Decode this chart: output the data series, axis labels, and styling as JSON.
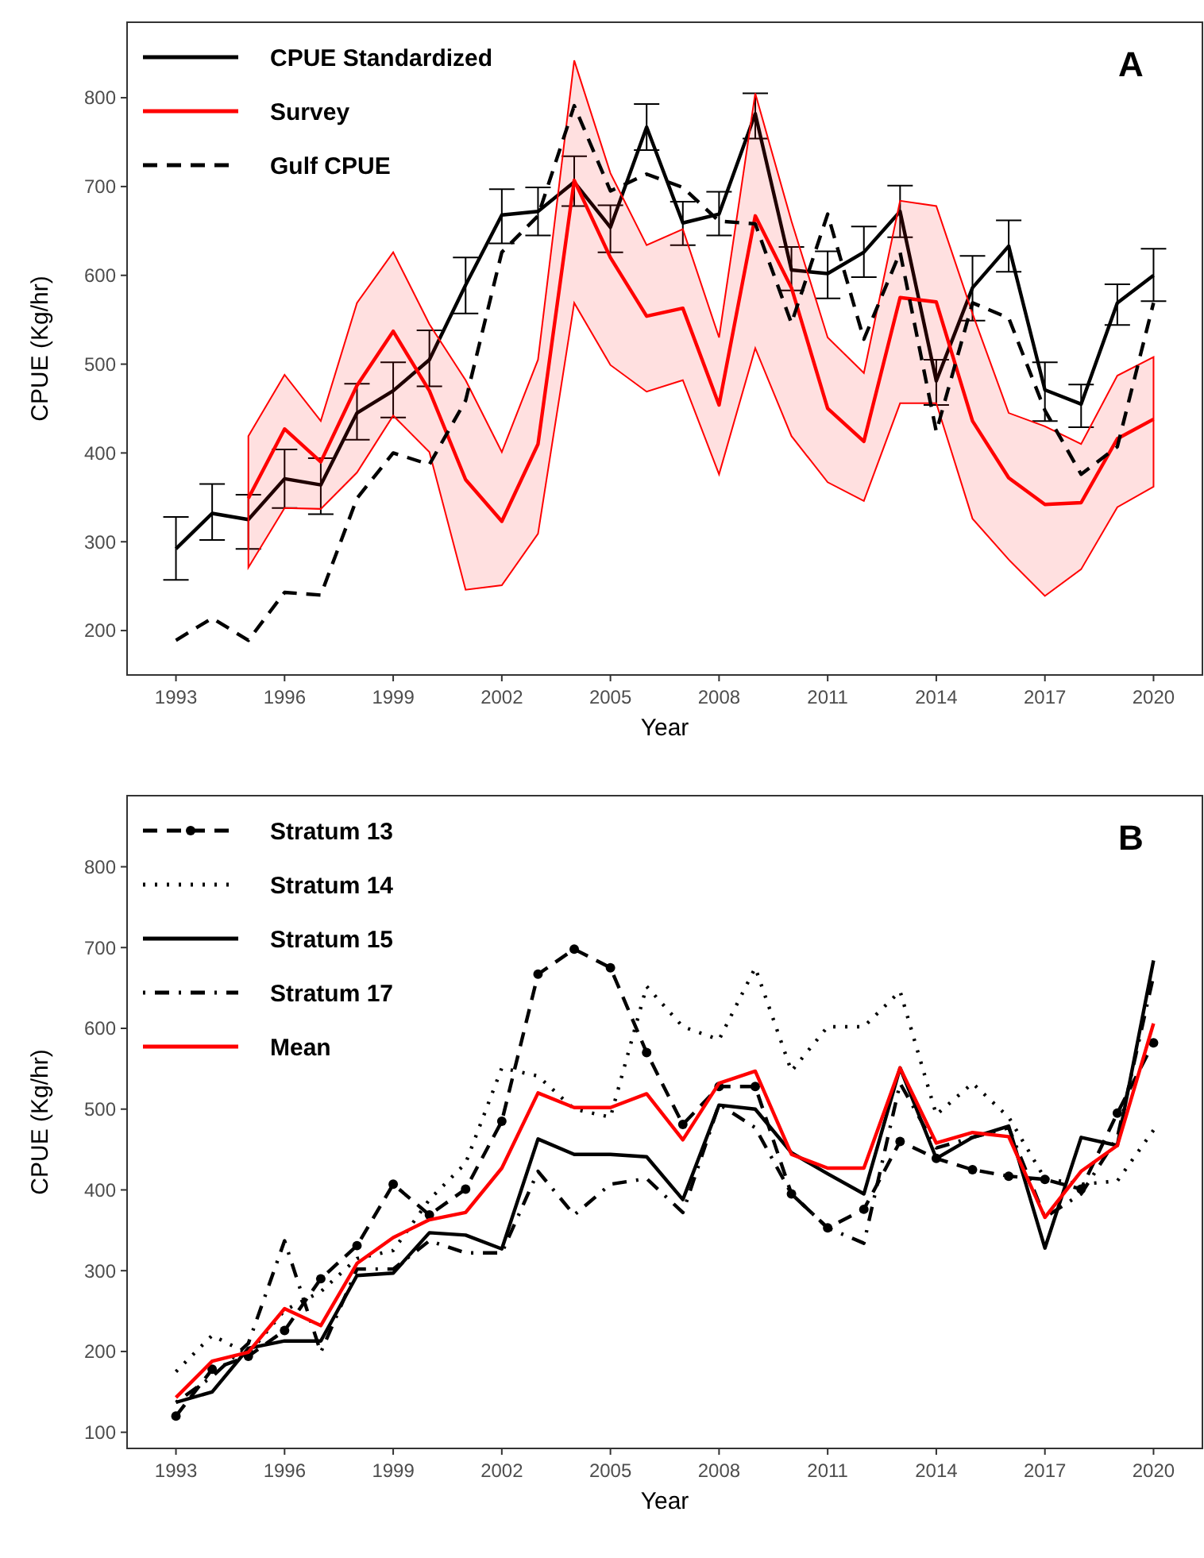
{
  "chart_data": [
    {
      "type": "line",
      "xlabel": "Year",
      "ylabel": "CPUE (Kg/hr)",
      "annotations": [
        "A"
      ],
      "x": [
        1993,
        1994,
        1995,
        1996,
        1997,
        1998,
        1999,
        2000,
        2001,
        2002,
        2003,
        2004,
        2005,
        2006,
        2007,
        2008,
        2009,
        2010,
        2011,
        2012,
        2013,
        2014,
        2015,
        2016,
        2017,
        2018,
        2019,
        2020
      ],
      "xlim": [
        1991.65,
        2021.35
      ],
      "xticks": [
        1993,
        1996,
        1999,
        2002,
        2005,
        2008,
        2011,
        2014,
        2017,
        2020
      ],
      "ylim": [
        150,
        885
      ],
      "yticks": [
        200,
        300,
        400,
        500,
        600,
        700,
        800
      ],
      "grid": false,
      "legend": "top left",
      "series": [
        {
          "name": "CPUE Standardized",
          "color": "#000000",
          "line_style": "solid",
          "values": [
            292,
            332,
            325,
            371,
            364,
            445,
            470,
            505,
            589,
            668,
            672,
            705,
            654,
            767,
            659,
            669,
            782,
            606,
            602,
            626,
            672,
            481,
            586,
            633,
            471,
            455,
            569,
            600
          ],
          "errors": [
            [
              257,
              328
            ],
            [
              302,
              365
            ],
            [
              292,
              353
            ],
            [
              338,
              404
            ],
            [
              331,
              394
            ],
            [
              415,
              478
            ],
            [
              440,
              502
            ],
            [
              475,
              538
            ],
            [
              557,
              620
            ],
            [
              636,
              697
            ],
            [
              645,
              699
            ],
            [
              678,
              734
            ],
            [
              626,
              679
            ],
            [
              741,
              793
            ],
            [
              634,
              683
            ],
            [
              645,
              694
            ],
            [
              754,
              805
            ],
            [
              583,
              632
            ],
            [
              574,
              627
            ],
            [
              598,
              655
            ],
            [
              643,
              701
            ],
            [
              454,
              505
            ],
            [
              549,
              622
            ],
            [
              604,
              662
            ],
            [
              436,
              502
            ],
            [
              429,
              477
            ],
            [
              544,
              590
            ],
            [
              571,
              630
            ]
          ]
        },
        {
          "name": "Survey",
          "color": "#ff0000",
          "line_style": "solid",
          "values": [
            null,
            null,
            349,
            427,
            390,
            476,
            537,
            470,
            370,
            323,
            410,
            707,
            620,
            554,
            563,
            454,
            667,
            586,
            450,
            413,
            575,
            570,
            436,
            372,
            342,
            344,
            416,
            438
          ],
          "lower": [
            null,
            null,
            271,
            338,
            337,
            378,
            442,
            401,
            246,
            251,
            309,
            569,
            499,
            469,
            482,
            376,
            518,
            419,
            367,
            346,
            456,
            456,
            326,
            280,
            239,
            269,
            339,
            362
          ],
          "upper": [
            null,
            null,
            419,
            488,
            436,
            569,
            626,
            545,
            482,
            401,
            505,
            842,
            715,
            634,
            652,
            530,
            805,
            661,
            530,
            490,
            684,
            678,
            557,
            445,
            430,
            410,
            487,
            508
          ]
        },
        {
          "name": "Gulf CPUE",
          "color": "#000000",
          "line_style": "dashed",
          "values": [
            189,
            214,
            189,
            243,
            240,
            349,
            400,
            387,
            459,
            626,
            667,
            791,
            695,
            714,
            699,
            661,
            658,
            546,
            669,
            528,
            626,
            424,
            569,
            552,
            448,
            376,
            407,
            569
          ]
        }
      ]
    },
    {
      "type": "line",
      "xlabel": "Year",
      "ylabel": "CPUE (Kg/hr)",
      "annotations": [
        "B"
      ],
      "x": [
        1993,
        1994,
        1995,
        1996,
        1997,
        1998,
        1999,
        2000,
        2001,
        2002,
        2003,
        2004,
        2005,
        2006,
        2007,
        2008,
        2009,
        2010,
        2011,
        2012,
        2013,
        2014,
        2015,
        2016,
        2017,
        2018,
        2019,
        2020
      ],
      "xlim": [
        1991.65,
        2021.35
      ],
      "xticks": [
        1993,
        1996,
        1999,
        2002,
        2005,
        2008,
        2011,
        2014,
        2017,
        2020
      ],
      "ylim": [
        80,
        888
      ],
      "yticks": [
        100,
        200,
        300,
        400,
        500,
        600,
        700,
        800
      ],
      "grid": false,
      "legend": "top left",
      "series": [
        {
          "name": "Stratum 13",
          "color": "#000000",
          "line_style": "dashed",
          "marker": "circle",
          "values": [
            120,
            178,
            194,
            226,
            290,
            331,
            407,
            369,
            401,
            485,
            667,
            698,
            675,
            570,
            481,
            528,
            528,
            395,
            353,
            376,
            460,
            439,
            425,
            417,
            413,
            401,
            495,
            582
          ]
        },
        {
          "name": "Stratum 14",
          "color": "#000000",
          "line_style": "dotted",
          "values": [
            175,
            220,
            197,
            251,
            274,
            315,
            325,
            388,
            433,
            551,
            541,
            500,
            490,
            652,
            602,
            586,
            675,
            547,
            602,
            602,
            646,
            493,
            532,
            490,
            414,
            407,
            411,
            474
          ]
        },
        {
          "name": "Stratum 15",
          "color": "#000000",
          "line_style": "solid",
          "values": [
            137,
            150,
            204,
            213,
            213,
            294,
            297,
            347,
            344,
            327,
            463,
            444,
            444,
            441,
            388,
            505,
            500,
            446,
            420,
            395,
            551,
            439,
            465,
            479,
            328,
            465,
            455,
            684
          ]
        },
        {
          "name": "Stratum 17",
          "color": "#000000",
          "line_style": "dashdot",
          "values": [
            137,
            169,
            210,
            337,
            199,
            302,
            302,
            337,
            322,
            322,
            423,
            369,
            407,
            414,
            372,
            506,
            477,
            395,
            353,
            334,
            532,
            452,
            465,
            477,
            366,
            395,
            465,
            665
          ]
        },
        {
          "name": "Mean",
          "color": "#ff0000",
          "line_style": "solid",
          "values": [
            143,
            188,
            199,
            253,
            232,
            309,
            341,
            363,
            372,
            427,
            520,
            502,
            502,
            519,
            462,
            532,
            547,
            444,
            427,
            427,
            551,
            458,
            471,
            466,
            366,
            423,
            455,
            606
          ]
        }
      ]
    }
  ]
}
